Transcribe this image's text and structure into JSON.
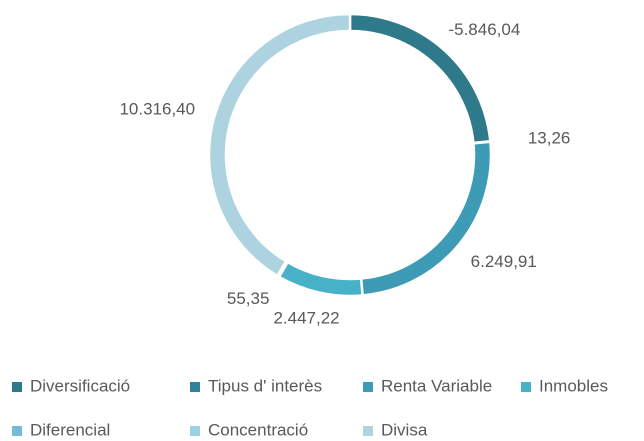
{
  "chart_data": {
    "type": "donut",
    "categories": [
      "Diversificació",
      "Tipus d' interès",
      "Renta Variable",
      "Inmobles",
      "Diferencial",
      "Concentració",
      "Divisa"
    ],
    "values": [
      -5846.04,
      13.26,
      6249.91,
      2447.22,
      55.35,
      null,
      10316.4
    ],
    "value_labels": [
      "-5.846,04",
      "13,26",
      "6.249,91",
      "2.447,22",
      "55,35",
      null,
      "10.316,40"
    ],
    "colors": [
      "#2f7a8a",
      "#31829a",
      "#3d9bb5",
      "#47b1c8",
      "#74bcd6",
      "#9dd0e0",
      "#aed3e0"
    ],
    "legend": "bottom"
  }
}
